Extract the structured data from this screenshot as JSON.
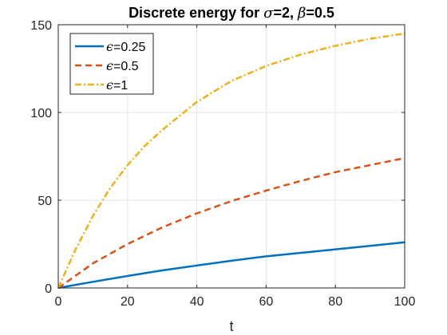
{
  "chart_data": {
    "type": "line",
    "title": {
      "prefix": "Discrete energy for ",
      "sym1": "σ",
      "mid": "=2, ",
      "sym2": "β",
      "suffix": "=0.5"
    },
    "xlabel": "t",
    "ylabel": "",
    "xlim": [
      0,
      100
    ],
    "ylim": [
      0,
      150
    ],
    "xticks": [
      0,
      20,
      40,
      60,
      80,
      100
    ],
    "yticks": [
      0,
      50,
      100,
      150
    ],
    "grid": true,
    "legend_position": "top-left",
    "series": [
      {
        "name": "ϵ=0.25",
        "name_symbol": "ϵ",
        "name_value": "=0.25",
        "color": "#0072BD",
        "style": "solid",
        "x": [
          0,
          10,
          20,
          30,
          40,
          50,
          60,
          70,
          80,
          90,
          100
        ],
        "y": [
          0,
          3.5,
          6.8,
          10,
          12.8,
          15.5,
          18,
          20,
          22,
          24,
          26
        ]
      },
      {
        "name": "ϵ=0.5",
        "name_symbol": "ϵ",
        "name_value": "=0.5",
        "color": "#D95319",
        "style": "dashed",
        "x": [
          0,
          5,
          10,
          20,
          30,
          40,
          50,
          60,
          70,
          80,
          90,
          100
        ],
        "y": [
          0,
          7,
          14,
          25,
          34.5,
          42.5,
          49.5,
          55.5,
          61,
          66,
          70,
          74
        ]
      },
      {
        "name": "ϵ=1",
        "name_symbol": "ϵ",
        "name_value": "=1",
        "color": "#EDB120",
        "style": "dashdot",
        "x": [
          0,
          5,
          10,
          15,
          20,
          25,
          30,
          40,
          50,
          60,
          70,
          80,
          90,
          100
        ],
        "y": [
          0,
          22,
          41,
          57,
          70,
          81,
          90,
          106,
          118,
          126.5,
          133,
          138,
          142,
          145
        ]
      }
    ]
  }
}
